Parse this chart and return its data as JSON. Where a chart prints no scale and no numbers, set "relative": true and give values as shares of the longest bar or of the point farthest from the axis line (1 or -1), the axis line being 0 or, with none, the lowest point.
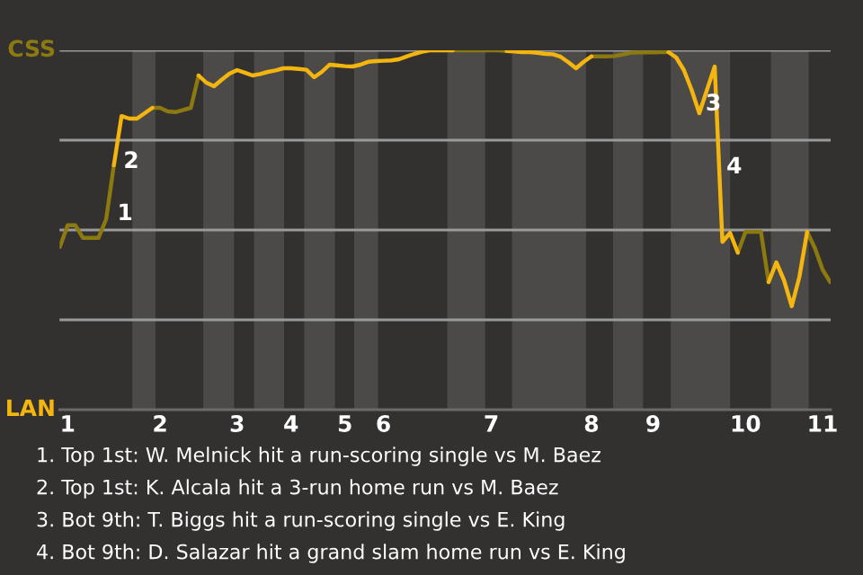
{
  "chart_data": {
    "type": "line",
    "relative": true,
    "categories": [
      null,
      "1",
      null,
      null,
      null,
      null,
      null,
      null,
      null,
      null,
      null,
      null,
      null,
      "2",
      null,
      null,
      null,
      null,
      null,
      null,
      null,
      null,
      null,
      "3",
      null,
      null,
      null,
      null,
      null,
      null,
      "4",
      null,
      null,
      null,
      null,
      null,
      null,
      "5",
      null,
      null,
      null,
      null,
      "6",
      null,
      null,
      null,
      null,
      null,
      null,
      null,
      null,
      null,
      null,
      null,
      null,
      null,
      "7",
      null,
      null,
      null,
      null,
      null,
      null,
      null,
      null,
      null,
      null,
      null,
      null,
      "8",
      null,
      null,
      null,
      null,
      null,
      null,
      null,
      "9",
      null,
      null,
      null,
      null,
      null,
      null,
      null,
      null,
      null,
      null,
      null,
      "10",
      null,
      null,
      null,
      null,
      null,
      null,
      null,
      null,
      null,
      "11",
      null
    ],
    "series": [
      {
        "color": "#8c7a10",
        "values": [
          0.453,
          0.513,
          0.513,
          0.478,
          0.478,
          0.478,
          0.53,
          0.68,
          null,
          null,
          null,
          null,
          0.84,
          0.84,
          0.83,
          0.828,
          0.834,
          0.84,
          0.93,
          null,
          null,
          null,
          null,
          null,
          null,
          null,
          null,
          null,
          null,
          null,
          null,
          null,
          null,
          null,
          null,
          null,
          null,
          null,
          null,
          null,
          null,
          null,
          null,
          null,
          null,
          null,
          null,
          null,
          null,
          null,
          null,
          1,
          1,
          1,
          1,
          1,
          1,
          1,
          0.998,
          null,
          null,
          null,
          null,
          null,
          null,
          null,
          null,
          null,
          null,
          0.983,
          0.983,
          0.983,
          0.984,
          0.988,
          0.993,
          0.994,
          0.994,
          0.994,
          0.995,
          0.995,
          null,
          null,
          null,
          null,
          null,
          null,
          null,
          null,
          0.437,
          0.495,
          0.495,
          0.495,
          0.355,
          null,
          null,
          null,
          null,
          0.495,
          0.45,
          0.39,
          0.355
        ]
      },
      {
        "color": "#f5b50f",
        "values": [
          null,
          null,
          null,
          null,
          null,
          null,
          null,
          0.68,
          0.817,
          0.81,
          0.81,
          0.825,
          0.84,
          null,
          null,
          null,
          null,
          null,
          0.93,
          0.91,
          0.9,
          0.918,
          0.935,
          0.945,
          0.938,
          0.93,
          0.934,
          0.94,
          0.944,
          0.95,
          0.95,
          0.948,
          0.946,
          0.925,
          0.94,
          0.96,
          0.958,
          0.956,
          0.955,
          0.96,
          0.968,
          0.97,
          0.971,
          0.972,
          0.975,
          0.983,
          0.99,
          0.996,
          1,
          1,
          1,
          1,
          null,
          null,
          null,
          null,
          null,
          null,
          0.998,
          0.997,
          0.995,
          0.995,
          0.993,
          0.99,
          0.989,
          0.982,
          0.967,
          0.95,
          0.968,
          0.983,
          null,
          null,
          null,
          null,
          null,
          null,
          null,
          null,
          null,
          0.995,
          0.98,
          0.945,
          0.89,
          0.825,
          0.89,
          0.955,
          0.467,
          0.492,
          0.437,
          null,
          null,
          null,
          0.355,
          0.41,
          0.36,
          0.288,
          0.37,
          0.495,
          null,
          null,
          null
        ]
      }
    ],
    "grid": "y",
    "annotations": [
      "1",
      "2",
      "3",
      "4",
      "CSS",
      "LAN",
      "1. Top 1st: W. Melnick hit a run-scoring single vs M. Baez",
      "2. Top 1st: K. Alcala hit a 3-run home run vs M. Baez",
      "3. Bot 9th: T. Biggs hit a run-scoring single vs E. King",
      "4. Bot 9th: D. Salazar hit a grand slam home run vs E. King"
    ]
  }
}
